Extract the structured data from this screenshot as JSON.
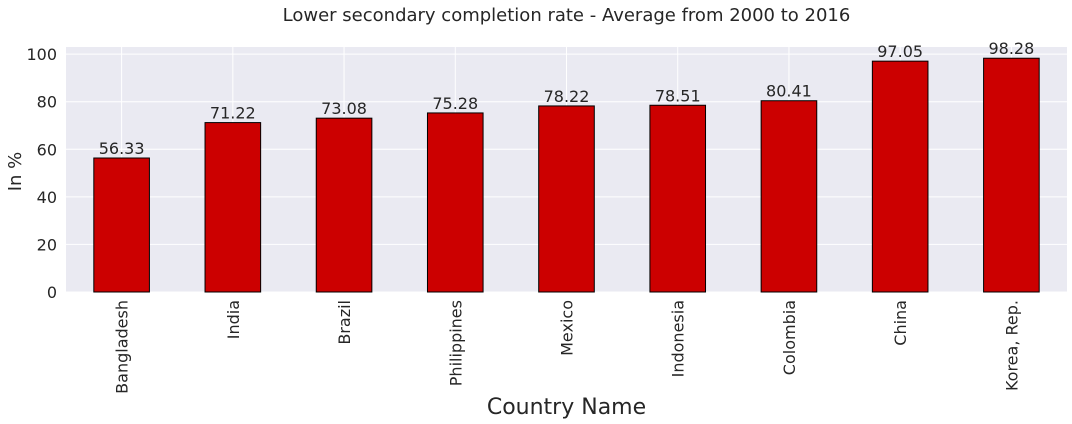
{
  "chart_data": {
    "type": "bar",
    "title": "Lower secondary completion rate - Average from 2000 to 2016",
    "xlabel": "Country Name",
    "ylabel": "In %",
    "categories": [
      "Bangladesh",
      "India",
      "Brazil",
      "Philippines",
      "Mexico",
      "Indonesia",
      "Colombia",
      "China",
      "Korea, Rep."
    ],
    "values": [
      56.33,
      71.22,
      73.08,
      75.28,
      78.22,
      78.51,
      80.41,
      97.05,
      98.28
    ],
    "value_labels": [
      "56.33",
      "71.22",
      "73.08",
      "75.28",
      "78.22",
      "78.51",
      "80.41",
      "97.05",
      "98.28"
    ],
    "ylim": [
      0,
      103
    ],
    "yticks": [
      0,
      20,
      40,
      60,
      80,
      100
    ],
    "ytick_labels": [
      "0",
      "20",
      "40",
      "60",
      "80",
      "100"
    ],
    "grid": true,
    "colors": {
      "bar": "#cc0000",
      "bar_edge": "#000000",
      "plot_background": "#eaeaf2",
      "grid": "#ffffff"
    }
  }
}
